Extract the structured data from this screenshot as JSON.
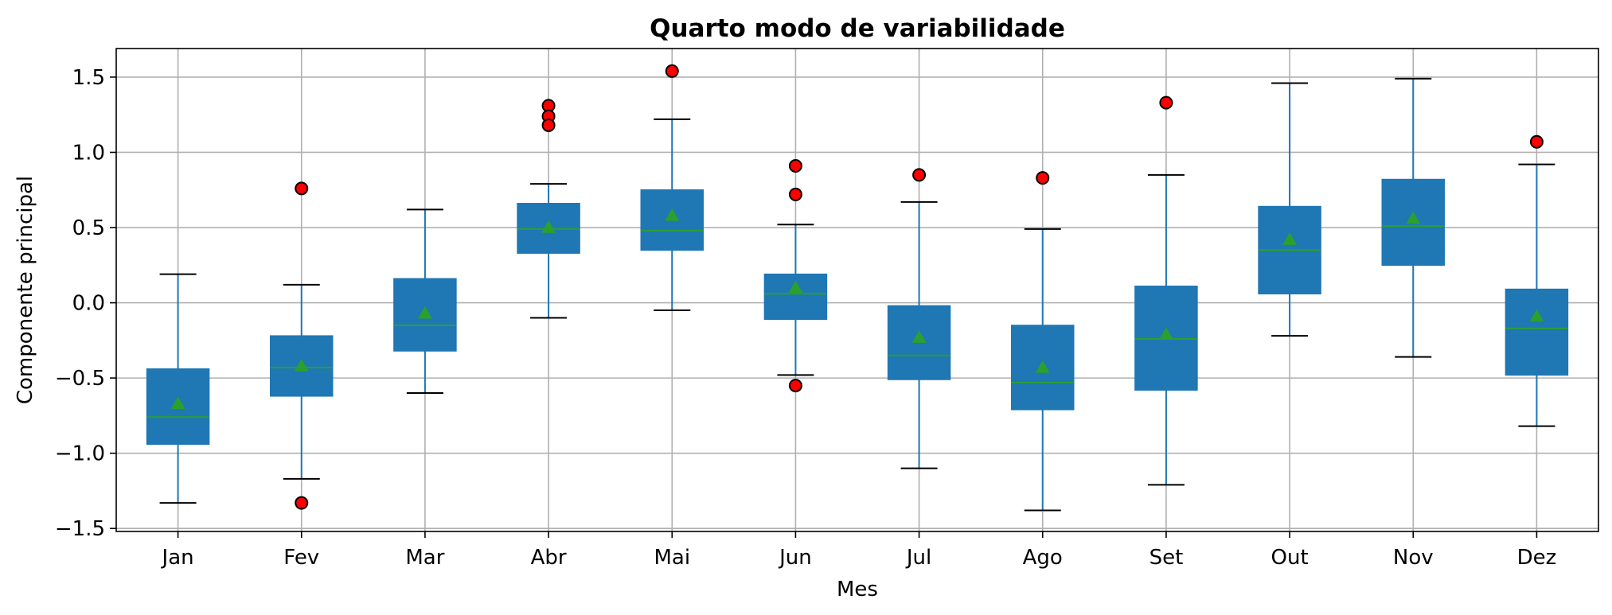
{
  "chart_data": {
    "type": "box",
    "title": "Quarto modo de variabilidade",
    "xlabel": "Mes",
    "ylabel": "Componente principal",
    "ylim": [
      -1.52,
      1.69
    ],
    "yticks": [
      -1.5,
      -1.0,
      -0.5,
      0.0,
      0.5,
      1.0,
      1.5
    ],
    "ytick_labels": [
      "−1.5",
      "−1.0",
      "−0.5",
      "0.0",
      "0.5",
      "1.0",
      "1.5"
    ],
    "grid": true,
    "colors": {
      "box_fill": "#1f77b4",
      "whisker": "#1f77b4",
      "median": "#2ca02c",
      "mean_marker": "#2ca02c",
      "outlier_fill": "#ff0000",
      "outlier_edge": "#000000",
      "grid": "#b0b0b0"
    },
    "categories": [
      "Jan",
      "Fev",
      "Mar",
      "Abr",
      "Mai",
      "Jun",
      "Jul",
      "Ago",
      "Set",
      "Out",
      "Nov",
      "Dez"
    ],
    "boxes": [
      {
        "whislo": -1.33,
        "q1": -0.94,
        "med": -0.76,
        "mean": -0.67,
        "q3": -0.44,
        "whishi": 0.19,
        "fliers": []
      },
      {
        "whislo": -1.17,
        "q1": -0.62,
        "med": -0.43,
        "mean": -0.42,
        "q3": -0.22,
        "whishi": 0.12,
        "fliers": [
          0.76,
          -1.33
        ]
      },
      {
        "whislo": -0.6,
        "q1": -0.32,
        "med": -0.15,
        "mean": -0.07,
        "q3": 0.16,
        "whishi": 0.62,
        "fliers": []
      },
      {
        "whislo": -0.1,
        "q1": 0.33,
        "med": 0.49,
        "mean": 0.5,
        "q3": 0.66,
        "whishi": 0.79,
        "fliers": [
          1.31,
          1.24,
          1.18
        ]
      },
      {
        "whislo": -0.05,
        "q1": 0.35,
        "med": 0.48,
        "mean": 0.58,
        "q3": 0.75,
        "whishi": 1.22,
        "fliers": [
          1.54
        ]
      },
      {
        "whislo": -0.48,
        "q1": -0.11,
        "med": 0.06,
        "mean": 0.1,
        "q3": 0.19,
        "whishi": 0.52,
        "fliers": [
          0.91,
          0.72,
          -0.55
        ]
      },
      {
        "whislo": -1.1,
        "q1": -0.51,
        "med": -0.35,
        "mean": -0.23,
        "q3": -0.02,
        "whishi": 0.67,
        "fliers": [
          0.85
        ]
      },
      {
        "whislo": -1.38,
        "q1": -0.71,
        "med": -0.53,
        "mean": -0.43,
        "q3": -0.15,
        "whishi": 0.49,
        "fliers": [
          0.83
        ]
      },
      {
        "whislo": -1.21,
        "q1": -0.58,
        "med": -0.24,
        "mean": -0.21,
        "q3": 0.11,
        "whishi": 0.85,
        "fliers": [
          1.33
        ]
      },
      {
        "whislo": -0.22,
        "q1": 0.06,
        "med": 0.35,
        "mean": 0.42,
        "q3": 0.64,
        "whishi": 1.46,
        "fliers": []
      },
      {
        "whislo": -0.36,
        "q1": 0.25,
        "med": 0.51,
        "mean": 0.56,
        "q3": 0.82,
        "whishi": 1.49,
        "fliers": []
      },
      {
        "whislo": -0.82,
        "q1": -0.48,
        "med": -0.17,
        "mean": -0.09,
        "q3": 0.09,
        "whishi": 0.92,
        "fliers": [
          1.07
        ]
      }
    ]
  }
}
